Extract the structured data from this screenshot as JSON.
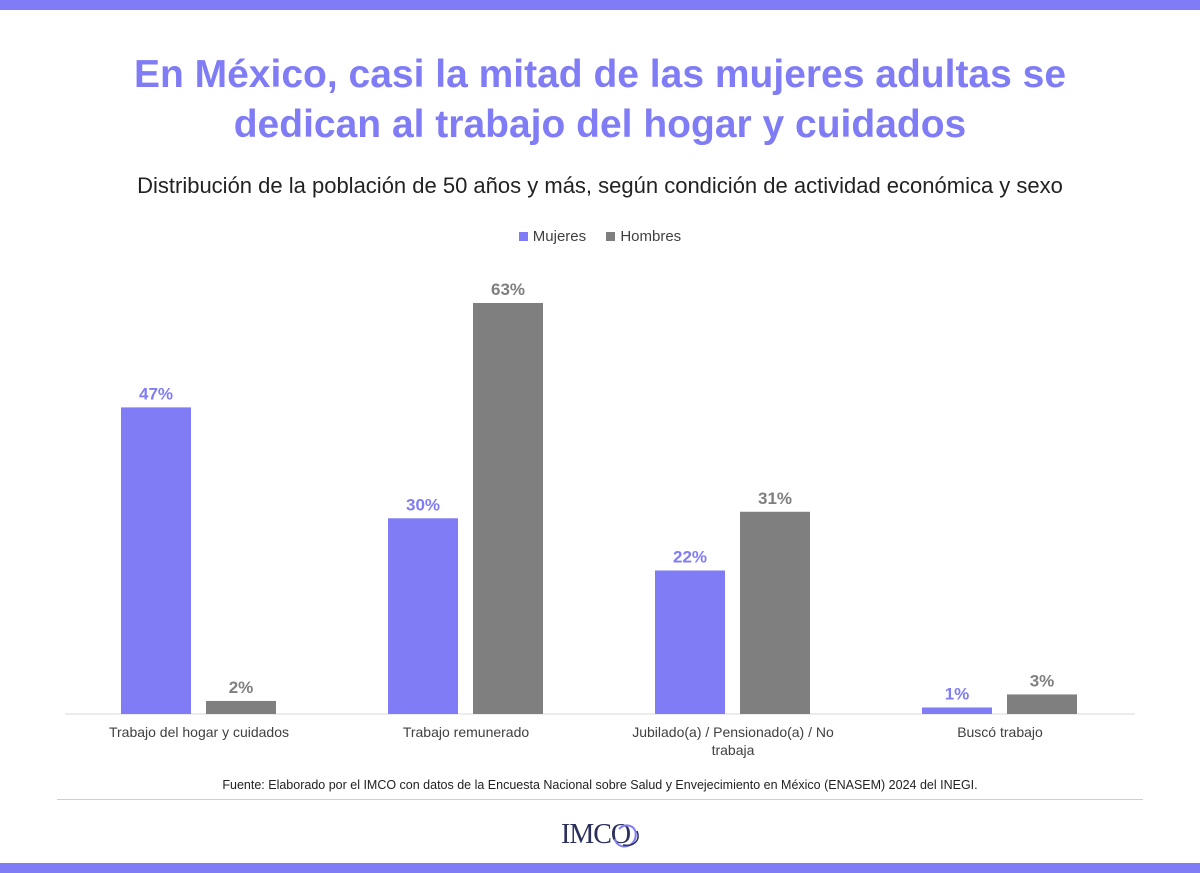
{
  "colors": {
    "accent": "#7f7cf5",
    "mujeres": "#7f7cf5",
    "hombres": "#7f7f7f"
  },
  "title_line1": "En México, casi la mitad de las mujeres adultas se",
  "title_line2": "dedican al trabajo del hogar y cuidados",
  "subtitle": "Distribución de la población de 50 años y más, según condición de actividad económica y sexo",
  "legend": {
    "mujeres": "Mujeres",
    "hombres": "Hombres"
  },
  "source": "Fuente: Elaborado por el IMCO con datos de la Encuesta Nacional sobre Salud y Envejecimiento en México (ENASEM) 2024 del INEGI.",
  "logo_text": "IMCO",
  "chart_data": {
    "type": "bar",
    "title": "En México, casi la mitad de las mujeres adultas se dedican al trabajo del hogar y cuidados",
    "subtitle": "Distribución de la población de 50 años y más, según condición de actividad económica y sexo",
    "categories": [
      [
        "Trabajo del hogar y cuidados"
      ],
      [
        "Trabajo remunerado"
      ],
      [
        "Jubilado(a) / Pensionado(a) / No",
        "trabaja"
      ],
      [
        "Buscó trabajo"
      ]
    ],
    "series": [
      {
        "name": "Mujeres",
        "values": [
          47,
          30,
          22,
          1
        ],
        "labels": [
          "47%",
          "30%",
          "22%",
          "1%"
        ]
      },
      {
        "name": "Hombres",
        "values": [
          2,
          63,
          31,
          3
        ],
        "labels": [
          "2%",
          "63%",
          "31%",
          "3%"
        ]
      }
    ],
    "xlabel": "",
    "ylabel": "",
    "ylim": [
      0,
      63
    ],
    "legend_position": "top",
    "grid": false
  }
}
